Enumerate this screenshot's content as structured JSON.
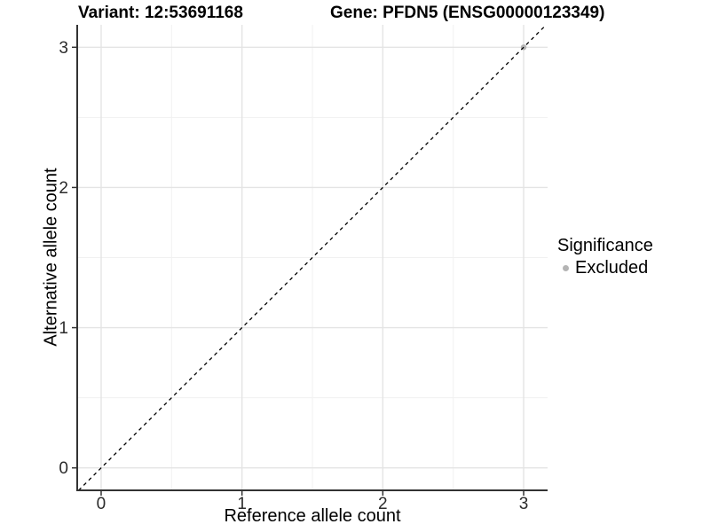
{
  "chart_data": {
    "type": "scatter",
    "title_left": "Variant: 12:53691168",
    "title_right": "Gene: PFDN5 (ENSG00000123349)",
    "xlabel": "Reference allele count",
    "ylabel": "Alternative allele count",
    "xlim": [
      -0.17,
      3.17
    ],
    "ylim": [
      -0.16,
      3.16
    ],
    "xticks": [
      0,
      1,
      2,
      3
    ],
    "yticks": [
      0,
      1,
      2,
      3
    ],
    "x_minor_ticks": [
      0.5,
      1.5,
      2.5
    ],
    "y_minor_ticks": [
      0.5,
      1.5,
      2.5
    ],
    "grid": "major and minor gridlines, light grey on white panel",
    "reference_line": {
      "equation": "y = x",
      "style": "dashed",
      "color": "#000000"
    },
    "series": [
      {
        "name": "Excluded",
        "color": "#b4b4b4",
        "points": [
          {
            "x": 3,
            "y": 3
          }
        ]
      }
    ],
    "legend": {
      "title": "Significance",
      "position": "right",
      "entries": [
        {
          "label": "Excluded",
          "color": "#b4b4b4"
        }
      ]
    },
    "style": {
      "grid_major_color": "#e4e4e4",
      "grid_minor_color": "#f1f1f1",
      "axis_line_color": "#333333",
      "tick_color": "#333333",
      "tick_label_color": "#2b2b2b",
      "title_color": "#000000",
      "background": "#ffffff"
    }
  }
}
